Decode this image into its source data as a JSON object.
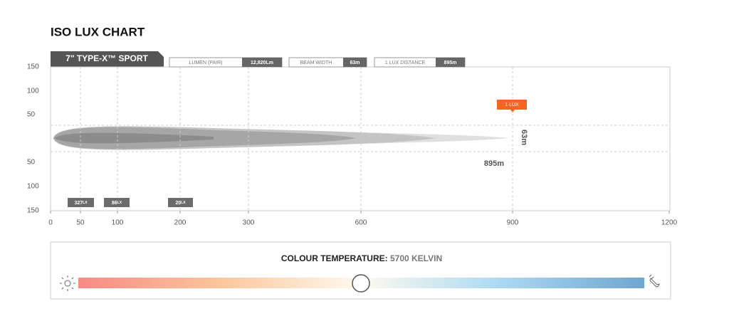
{
  "header": {
    "title": "ISO LUX CHART"
  },
  "tab": "7\" TYPE-X™ SPORT",
  "specs": [
    {
      "label": "LUMEN (PAIR)",
      "value": "12,820Lm"
    },
    {
      "label": "BEAM WIDTH",
      "value": "63m"
    },
    {
      "label": "1 LUX DISTANCE",
      "value": "895m"
    }
  ],
  "plot": {
    "y_labels": [
      150,
      100,
      50,
      50,
      100,
      150
    ],
    "x_labels": [
      0,
      50,
      100,
      200,
      300,
      600,
      900,
      1200
    ],
    "lux_markers": [
      {
        "value": "327",
        "unit": "LX"
      },
      {
        "value": "86",
        "unit": "LX"
      },
      {
        "value": "20",
        "unit": "LX"
      }
    ],
    "lux_tag": "1 LUX",
    "width_label": "63m",
    "distance_label": "895m"
  },
  "colour": {
    "label": "COLOUR TEMPERATURE:",
    "value": "5700 KELVIN"
  }
}
